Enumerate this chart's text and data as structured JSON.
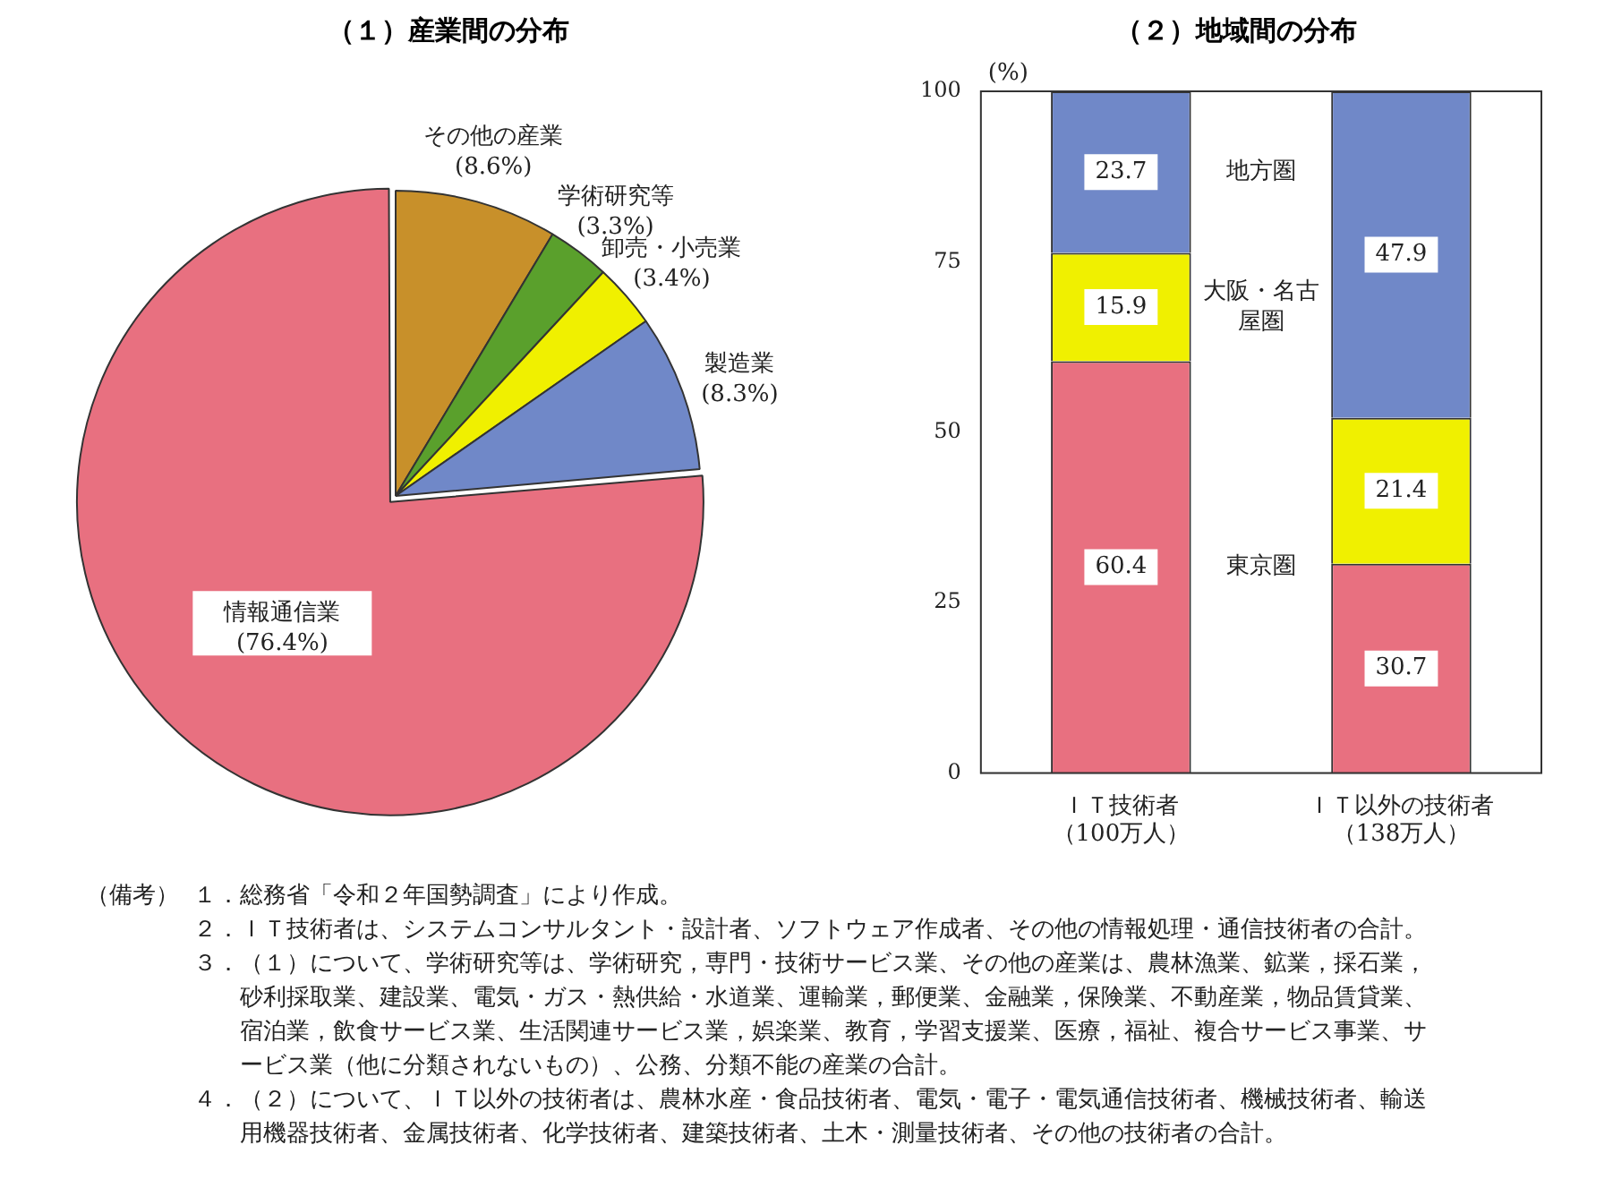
{
  "chart_data": [
    {
      "type": "pie",
      "title": "（１）産業間の分布",
      "categories": [
        "その他の産業",
        "学術研究等",
        "卸売・小売業",
        "製造業",
        "情報通信業"
      ],
      "values": [
        8.6,
        3.3,
        3.4,
        8.3,
        76.4
      ],
      "value_labels": [
        "(8.6%)",
        "(3.3%)",
        "(3.4%)",
        "(8.3%)",
        "(76.4%)"
      ],
      "colors": [
        "#c8902a",
        "#5aa02c",
        "#f0f000",
        "#7088c8",
        "#e87080"
      ]
    },
    {
      "type": "bar",
      "title": "（２）地域間の分布",
      "ylabel": "(%)",
      "stacked": true,
      "data_labels": true,
      "categories": [
        "ＩＴ技術者（100万人）",
        "ＩＴ以外の技術者（138万人）"
      ],
      "series": [
        {
          "name": "東京圏",
          "color": "#e87080",
          "values": [
            60.4,
            30.7
          ]
        },
        {
          "name": "大阪・名古屋圏",
          "color": "#f0f000",
          "values": [
            15.9,
            21.4
          ]
        },
        {
          "name": "地方圏",
          "color": "#7088c8",
          "values": [
            23.7,
            47.9
          ]
        }
      ],
      "ylim": [
        0,
        100
      ],
      "yticks": [
        0,
        25,
        50,
        75,
        100
      ],
      "grid": false,
      "legend": false
    },
    {
      "type": "other",
      "annotations": [
        "（備考）",
        "１．総務省「令和２年国勢調査」により作成。",
        "２．ＩＴ技術者は、システムコンサルタント・設計者、ソフトウェア作成者、その他の情報処理・通信技術者の合計。",
        "３．（１）について、学術研究等は、学術研究，専門・技術サービス業、その他の産業は、農林漁業、鉱業，採石業，砂利採取業、建設業、電気・ガス・熱供給・水道業、運輸業，郵便業、金融業，保険業、不動産業，物品賃貸業、宿泊業，飲食サービス業、生活関連サービス業，娯楽業、教育，学習支援業、医療，福祉、複合サービス事業、サービス業（他に分類されないもの）、公務、分類不能の産業の合計。",
        "４．（２）について、ＩＴ以外の技術者は、農林水産・食品技術者、電気・電子・電気通信技術者、機械技術者、輸送用機器技術者、金属技術者、化学技術者、建築技術者、土木・測量技術者、その他の技術者の合計。"
      ]
    }
  ]
}
